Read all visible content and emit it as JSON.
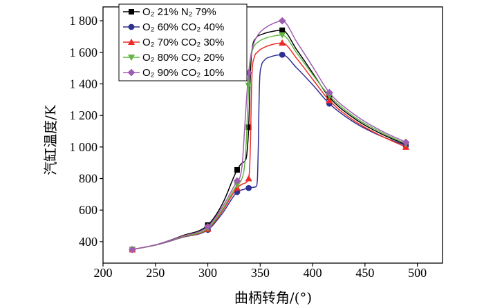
{
  "chart_data": {
    "type": "line",
    "xlabel": "曲柄转角/(°)",
    "ylabel": "汽缸温度/K",
    "xlim": [
      200,
      524
    ],
    "ylim": [
      264,
      1888
    ],
    "xticks": [
      200,
      250,
      300,
      350,
      400,
      450,
      500
    ],
    "yticks": [
      400,
      600,
      800,
      1000,
      1200,
      1400,
      1600,
      1800
    ],
    "ytick_labels": [
      "400",
      "600",
      "800",
      "1 000",
      "1 200",
      "1 400",
      "1 600",
      "1 800"
    ],
    "grid": false,
    "legend_position": "top-left",
    "x": [
      228,
      300,
      328,
      339,
      371,
      416,
      489
    ],
    "series": [
      {
        "name": "O₂ 21% N₂ 79%",
        "color": "#000000",
        "marker": "square",
        "values": [
          350,
          505,
          855,
          1125,
          1740,
          1315,
          1015
        ],
        "curve": [
          [
            228,
            350
          ],
          [
            252,
            383
          ],
          [
            276,
            438
          ],
          [
            300,
            505
          ],
          [
            314,
            640
          ],
          [
            328,
            855
          ],
          [
            333,
            900
          ],
          [
            336.5,
            925
          ],
          [
            338,
            1010
          ],
          [
            339,
            1125
          ],
          [
            340,
            1330
          ],
          [
            341,
            1520
          ],
          [
            342.5,
            1630
          ],
          [
            346,
            1690
          ],
          [
            352,
            1715
          ],
          [
            362,
            1733
          ],
          [
            371,
            1740
          ],
          [
            385,
            1615
          ],
          [
            400,
            1470
          ],
          [
            416,
            1315
          ],
          [
            440,
            1180
          ],
          [
            465,
            1085
          ],
          [
            489,
            1015
          ]
        ]
      },
      {
        "name": "O₂ 60% CO₂ 40%",
        "color": "#2d3192",
        "marker": "circle",
        "values": [
          350,
          475,
          715,
          740,
          1585,
          1275,
          1010
        ],
        "curve": [
          [
            228,
            350
          ],
          [
            252,
            381
          ],
          [
            276,
            428
          ],
          [
            300,
            475
          ],
          [
            314,
            580
          ],
          [
            328,
            715
          ],
          [
            333,
            729
          ],
          [
            339,
            740
          ],
          [
            344,
            745
          ],
          [
            346.5,
            752
          ],
          [
            347.5,
            820
          ],
          [
            348.2,
            1000
          ],
          [
            348.8,
            1250
          ],
          [
            349.5,
            1430
          ],
          [
            351,
            1510
          ],
          [
            354,
            1550
          ],
          [
            360,
            1572
          ],
          [
            371,
            1585
          ],
          [
            385,
            1500
          ],
          [
            400,
            1395
          ],
          [
            416,
            1275
          ],
          [
            440,
            1155
          ],
          [
            465,
            1070
          ],
          [
            489,
            1010
          ]
        ]
      },
      {
        "name": "O₂ 70% CO₂ 30%",
        "color": "#ee2a24",
        "marker": "triangle-up",
        "values": [
          350,
          480,
          740,
          800,
          1660,
          1295,
          1000
        ],
        "curve": [
          [
            228,
            350
          ],
          [
            252,
            382
          ],
          [
            276,
            430
          ],
          [
            300,
            480
          ],
          [
            314,
            595
          ],
          [
            328,
            740
          ],
          [
            334,
            768
          ],
          [
            339,
            800
          ],
          [
            340,
            880
          ],
          [
            340.8,
            1050
          ],
          [
            341.5,
            1300
          ],
          [
            342.3,
            1480
          ],
          [
            344,
            1560
          ],
          [
            348,
            1605
          ],
          [
            355,
            1635
          ],
          [
            363,
            1652
          ],
          [
            371,
            1660
          ],
          [
            385,
            1560
          ],
          [
            400,
            1430
          ],
          [
            416,
            1295
          ],
          [
            440,
            1165
          ],
          [
            465,
            1072
          ],
          [
            489,
            1000
          ]
        ]
      },
      {
        "name": "O₂ 80% CO₂ 20%",
        "color": "#63b544",
        "marker": "triangle-down",
        "values": [
          350,
          485,
          760,
          1390,
          1710,
          1325,
          1020
        ],
        "curve": [
          [
            228,
            350
          ],
          [
            252,
            382
          ],
          [
            276,
            432
          ],
          [
            300,
            485
          ],
          [
            314,
            605
          ],
          [
            328,
            760
          ],
          [
            332,
            790
          ],
          [
            334.5,
            850
          ],
          [
            336,
            950
          ],
          [
            337.5,
            1150
          ],
          [
            339,
            1390
          ],
          [
            340.5,
            1540
          ],
          [
            343,
            1620
          ],
          [
            348,
            1665
          ],
          [
            356,
            1692
          ],
          [
            364,
            1705
          ],
          [
            371,
            1710
          ],
          [
            385,
            1595
          ],
          [
            400,
            1460
          ],
          [
            416,
            1325
          ],
          [
            440,
            1190
          ],
          [
            465,
            1095
          ],
          [
            489,
            1020
          ]
        ]
      },
      {
        "name": "O₂ 90% CO₂ 10%",
        "color": "#a05cb0",
        "marker": "diamond",
        "values": [
          350,
          495,
          785,
          1470,
          1800,
          1345,
          1030
        ],
        "curve": [
          [
            228,
            350
          ],
          [
            252,
            383
          ],
          [
            276,
            435
          ],
          [
            300,
            495
          ],
          [
            314,
            620
          ],
          [
            328,
            785
          ],
          [
            331,
            815
          ],
          [
            333,
            900
          ],
          [
            335,
            1100
          ],
          [
            337,
            1310
          ],
          [
            339,
            1470
          ],
          [
            341,
            1580
          ],
          [
            344,
            1660
          ],
          [
            349,
            1720
          ],
          [
            356,
            1760
          ],
          [
            364,
            1787
          ],
          [
            371,
            1800
          ],
          [
            385,
            1665
          ],
          [
            400,
            1510
          ],
          [
            416,
            1345
          ],
          [
            440,
            1205
          ],
          [
            465,
            1105
          ],
          [
            489,
            1030
          ]
        ]
      }
    ]
  }
}
